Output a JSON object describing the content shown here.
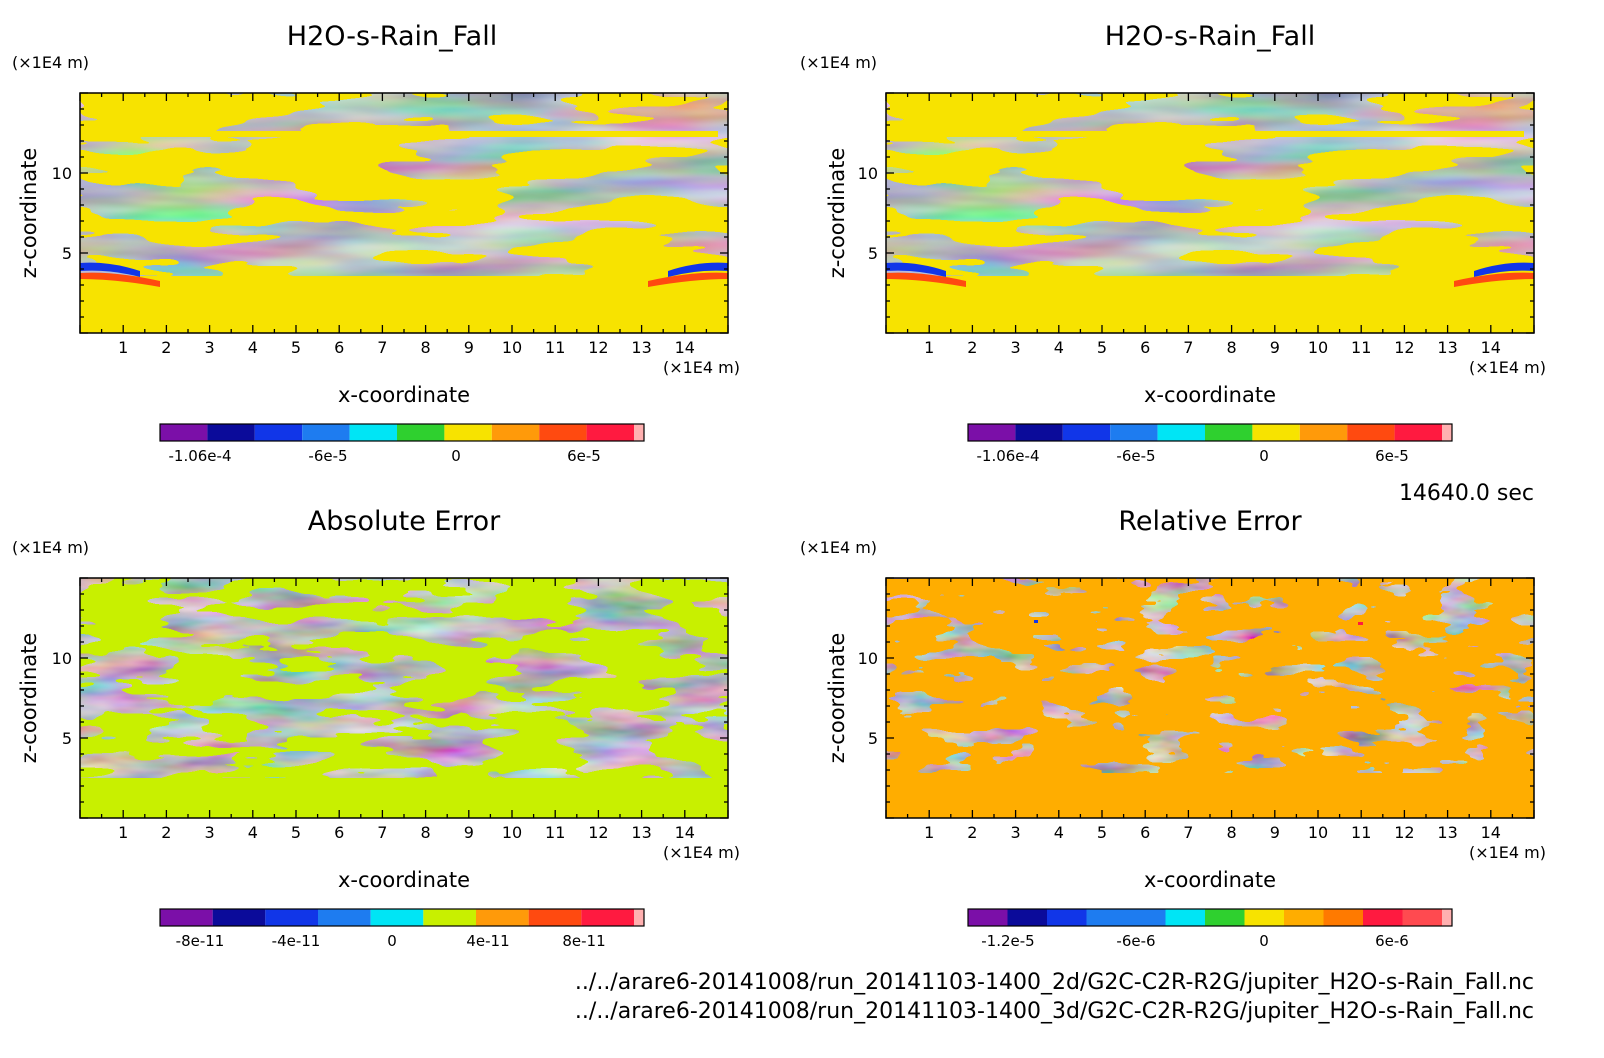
{
  "footer": {
    "time": "14640.0 sec",
    "file1": "../../arare6-20141008/run_20141103-1400_2d/G2C-C2R-R2G/jupiter_H2O-s-Rain_Fall.nc",
    "file2": "../../arare6-20141008/run_20141103-1400_3d/G2C-C2R-R2G/jupiter_H2O-s-Rain_Fall.nc"
  },
  "chart_data": [
    {
      "type": "heatmap",
      "title": "H2O-s-Rain_Fall",
      "xlabel": "x-coordinate",
      "ylabel": "z-coordinate",
      "x_unit": "(×1E4 m)",
      "y_unit": "(×1E4 m)",
      "xlim": [
        0,
        15
      ],
      "ylim": [
        0,
        15
      ],
      "xticks": [
        "1",
        "2",
        "3",
        "4",
        "5",
        "6",
        "7",
        "8",
        "9",
        "10",
        "11",
        "12",
        "13",
        "14"
      ],
      "yticks": [
        "5",
        "10"
      ],
      "colorbar": {
        "colors": [
          "#7b0fa8",
          "#0b0b9a",
          "#1136e8",
          "#1e7cf0",
          "#00e5f5",
          "#2fd02f",
          "#f7e300",
          "#ff9a0a",
          "#ff4a10",
          "#ff1a40",
          "#ffb0b0"
        ],
        "ticks": [
          "-1.06e-4",
          "-6e-5",
          "0",
          "6e-5"
        ]
      },
      "dominant_colors": [
        "#2fd02f",
        "#f7e300"
      ]
    },
    {
      "type": "heatmap",
      "title": "H2O-s-Rain_Fall",
      "xlabel": "x-coordinate",
      "ylabel": "z-coordinate",
      "x_unit": "(×1E4 m)",
      "y_unit": "(×1E4 m)",
      "xlim": [
        0,
        15
      ],
      "ylim": [
        0,
        15
      ],
      "xticks": [
        "1",
        "2",
        "3",
        "4",
        "5",
        "6",
        "7",
        "8",
        "9",
        "10",
        "11",
        "12",
        "13",
        "14"
      ],
      "yticks": [
        "5",
        "10"
      ],
      "colorbar": {
        "colors": [
          "#7b0fa8",
          "#0b0b9a",
          "#1136e8",
          "#1e7cf0",
          "#00e5f5",
          "#2fd02f",
          "#f7e300",
          "#ff9a0a",
          "#ff4a10",
          "#ff1a40",
          "#ffb0b0"
        ],
        "ticks": [
          "-1.06e-4",
          "-6e-5",
          "0",
          "6e-5"
        ]
      },
      "dominant_colors": [
        "#2fd02f",
        "#f7e300"
      ]
    },
    {
      "type": "heatmap",
      "title": "Absolute Error",
      "xlabel": "x-coordinate",
      "ylabel": "z-coordinate",
      "x_unit": "(×1E4 m)",
      "y_unit": "(×1E4 m)",
      "xlim": [
        0,
        15
      ],
      "ylim": [
        0,
        15
      ],
      "xticks": [
        "1",
        "2",
        "3",
        "4",
        "5",
        "6",
        "7",
        "8",
        "9",
        "10",
        "11",
        "12",
        "13",
        "14"
      ],
      "yticks": [
        "5",
        "10"
      ],
      "colorbar": {
        "colors": [
          "#7b0fa8",
          "#0b0b9a",
          "#1136e8",
          "#1e7cf0",
          "#00e5f5",
          "#c8f000",
          "#ff9a0a",
          "#ff4a10",
          "#ff1a40",
          "#ffb0b0"
        ],
        "ticks": [
          "-8e-11",
          "-4e-11",
          "0",
          "4e-11",
          "8e-11"
        ]
      },
      "dominant_colors": [
        "#c8f000",
        "#00e5f5"
      ]
    },
    {
      "type": "heatmap",
      "title": "Relative Error",
      "xlabel": "x-coordinate",
      "ylabel": "z-coordinate",
      "x_unit": "(×1E4 m)",
      "y_unit": "(×1E4 m)",
      "xlim": [
        0,
        15
      ],
      "ylim": [
        0,
        15
      ],
      "xticks": [
        "1",
        "2",
        "3",
        "4",
        "5",
        "6",
        "7",
        "8",
        "9",
        "10",
        "11",
        "12",
        "13",
        "14"
      ],
      "yticks": [
        "5",
        "10"
      ],
      "colorbar": {
        "colors": [
          "#7b0fa8",
          "#0b0b9a",
          "#1136e8",
          "#1e7cf0",
          "#1e7cf0",
          "#00e5f5",
          "#2fd02f",
          "#f7e300",
          "#ffad00",
          "#ff7a00",
          "#ff1a40",
          "#ff4a50",
          "#ffb0b0"
        ],
        "ticks": [
          "-1.2e-5",
          "-6e-6",
          "0",
          "6e-6"
        ]
      },
      "dominant_colors": [
        "#ffad00",
        "#f7e300"
      ]
    }
  ]
}
